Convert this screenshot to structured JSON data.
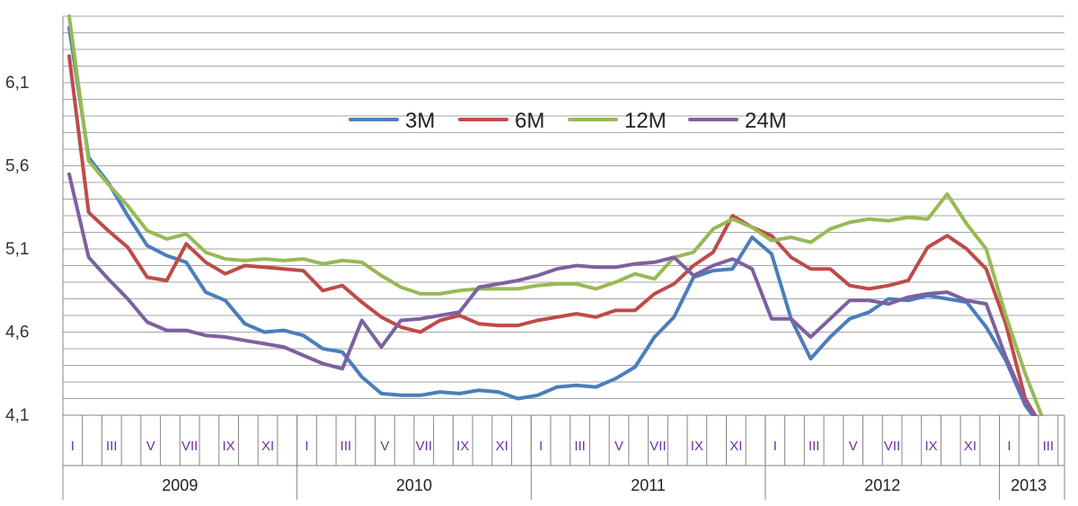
{
  "chart_data": {
    "type": "line",
    "y_ticks": [
      "4,1",
      "4,6",
      "5,1",
      "5,6",
      "6,1"
    ],
    "ylim": [
      4.1,
      6.5
    ],
    "grid": true,
    "legend_position": "top-center",
    "month_labels": [
      "I",
      "III",
      "V",
      "VII",
      "IX",
      "XI",
      "I",
      "III",
      "V",
      "VII",
      "IX",
      "XI",
      "I",
      "III",
      "V",
      "VII",
      "IX",
      "XI",
      "I",
      "III",
      "V",
      "VII",
      "IX",
      "XI",
      "I",
      "III"
    ],
    "month_label_indices": [
      0,
      2,
      4,
      6,
      8,
      10,
      12,
      14,
      16,
      18,
      20,
      22,
      24,
      26,
      28,
      30,
      32,
      34,
      36,
      38,
      40,
      42,
      44,
      46,
      48,
      50
    ],
    "years": [
      {
        "label": "2009",
        "start": 0,
        "end": 12
      },
      {
        "label": "2010",
        "start": 12,
        "end": 24
      },
      {
        "label": "2011",
        "start": 24,
        "end": 36
      },
      {
        "label": "2012",
        "start": 36,
        "end": 48
      },
      {
        "label": "2013",
        "start": 48,
        "end": 51
      }
    ],
    "n_months": 51,
    "series": [
      {
        "name": "3M",
        "color": "#4a7ebb",
        "values": [
          6.43,
          5.65,
          5.5,
          5.3,
          5.12,
          5.06,
          5.02,
          4.84,
          4.79,
          4.65,
          4.6,
          4.61,
          4.58,
          4.5,
          4.48,
          4.33,
          4.23,
          4.22,
          4.22,
          4.24,
          4.23,
          4.25,
          4.24,
          4.2,
          4.22,
          4.27,
          4.28,
          4.27,
          4.32,
          4.39,
          4.57,
          4.69,
          4.93,
          4.97,
          4.98,
          5.17,
          5.07,
          4.68,
          4.44,
          4.57,
          4.68,
          4.72,
          4.8,
          4.79,
          4.82,
          4.8,
          4.78,
          4.63,
          4.43,
          4.16,
          4.0
        ]
      },
      {
        "name": "6M",
        "color": "#be4b48",
        "values": [
          6.26,
          5.32,
          5.21,
          5.11,
          4.93,
          4.91,
          5.13,
          5.02,
          4.95,
          5.0,
          4.99,
          4.98,
          4.97,
          4.85,
          4.88,
          4.78,
          4.69,
          4.63,
          4.6,
          4.67,
          4.7,
          4.65,
          4.64,
          4.64,
          4.67,
          4.69,
          4.71,
          4.69,
          4.73,
          4.73,
          4.83,
          4.89,
          5.0,
          5.08,
          5.3,
          5.23,
          5.18,
          5.05,
          4.98,
          4.98,
          4.88,
          4.86,
          4.88,
          4.91,
          5.11,
          5.18,
          5.1,
          4.98,
          4.65,
          4.2,
          4.0
        ]
      },
      {
        "name": "12M",
        "color": "#98b954",
        "values": [
          6.5,
          5.63,
          5.49,
          5.36,
          5.21,
          5.16,
          5.19,
          5.08,
          5.04,
          5.03,
          5.04,
          5.03,
          5.04,
          5.01,
          5.03,
          5.02,
          4.94,
          4.87,
          4.83,
          4.83,
          4.85,
          4.86,
          4.86,
          4.86,
          4.88,
          4.89,
          4.89,
          4.86,
          4.9,
          4.95,
          4.92,
          5.05,
          5.08,
          5.22,
          5.28,
          5.23,
          5.15,
          5.17,
          5.14,
          5.22,
          5.26,
          5.28,
          5.27,
          5.29,
          5.28,
          5.43,
          5.25,
          5.1,
          4.7,
          4.35,
          4.05
        ]
      },
      {
        "name": "24M",
        "color": "#7d60a0",
        "values": [
          5.55,
          5.05,
          4.92,
          4.8,
          4.66,
          4.61,
          4.61,
          4.58,
          4.57,
          4.55,
          4.53,
          4.51,
          4.46,
          4.41,
          4.38,
          4.67,
          4.51,
          4.67,
          4.68,
          4.7,
          4.72,
          4.87,
          4.89,
          4.91,
          4.94,
          4.98,
          5.0,
          4.99,
          4.99,
          5.01,
          5.02,
          5.05,
          4.94,
          5.0,
          5.04,
          4.98,
          4.68,
          4.68,
          4.57,
          4.68,
          4.79,
          4.79,
          4.77,
          4.81,
          4.83,
          4.84,
          4.79,
          4.77,
          4.45,
          4.18,
          4.0
        ]
      }
    ]
  }
}
